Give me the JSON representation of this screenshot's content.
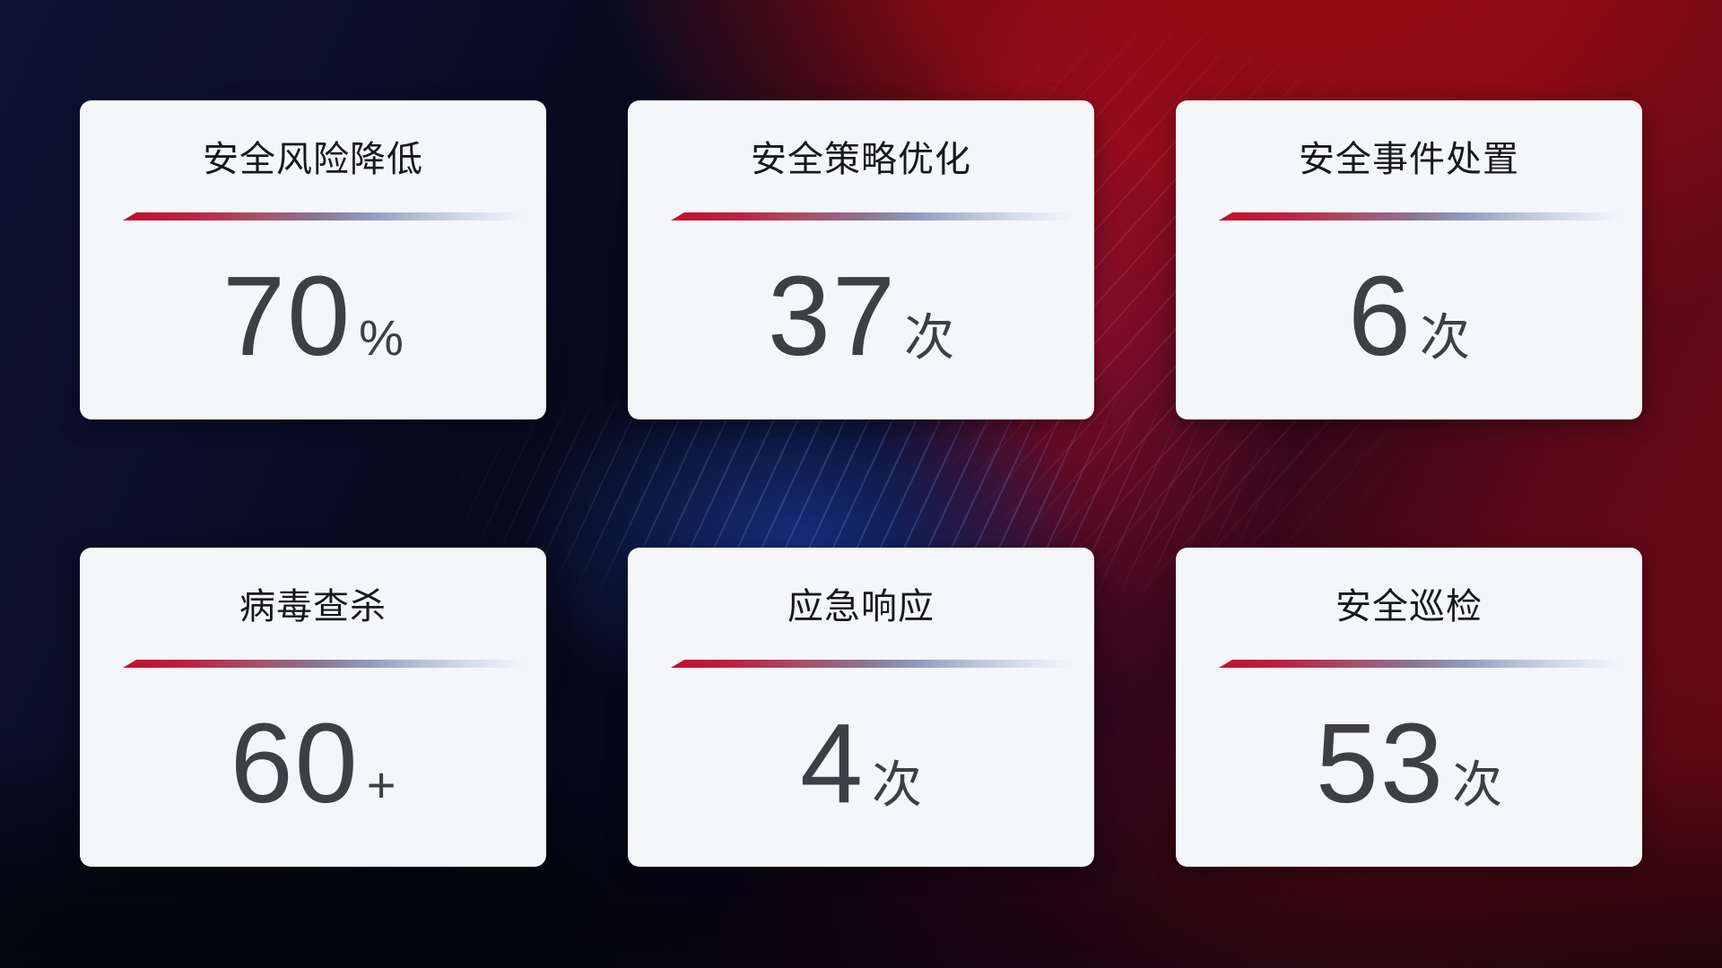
{
  "page": {
    "kind": "security-operations-stats-dashboard",
    "colors": {
      "backdrop_navy": "#0d1234",
      "backdrop_red": "#9c0d14",
      "backdrop_crimson_band": "#b21032",
      "backdrop_blue_glow": "#183080",
      "card_background": "#f5f6fa",
      "title_text": "#17181c",
      "value_text": "#3e3f44",
      "divider_red": "#c20f2e",
      "divider_blue": "#8f9ec5"
    }
  },
  "cards": [
    {
      "title": "安全风险降低",
      "value": "70",
      "unit": "%"
    },
    {
      "title": "安全策略优化",
      "value": "37",
      "unit": "次"
    },
    {
      "title": "安全事件处置",
      "value": "6",
      "unit": "次"
    },
    {
      "title": "病毒查杀",
      "value": "60",
      "unit": "+"
    },
    {
      "title": "应急响应",
      "value": "4",
      "unit": "次"
    },
    {
      "title": "安全巡检",
      "value": "53",
      "unit": "次"
    }
  ]
}
